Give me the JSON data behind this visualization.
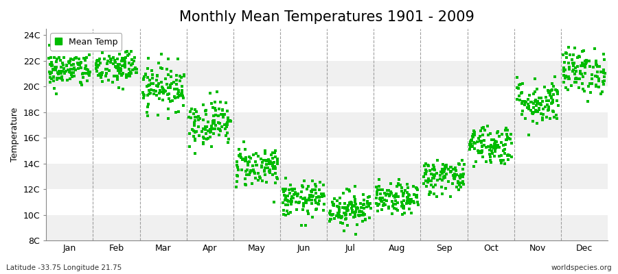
{
  "title": "Monthly Mean Temperatures 1901 - 2009",
  "ylabel": "Temperature",
  "bottom_left_label": "Latitude -33.75 Longitude 21.75",
  "bottom_right_label": "worldspecies.org",
  "legend_label": "Mean Temp",
  "marker_color": "#00BB00",
  "background_color": "#FFFFFF",
  "plot_bg_color": "#FFFFFF",
  "band_colors": [
    "#F0F0F0",
    "#FFFFFF"
  ],
  "ylim": [
    8,
    24.5
  ],
  "yticks": [
    8,
    10,
    12,
    14,
    16,
    18,
    20,
    22,
    24
  ],
  "ytick_labels": [
    "8C",
    "10C",
    "12C",
    "14C",
    "16C",
    "18C",
    "20C",
    "22C",
    "24C"
  ],
  "month_labels": [
    "Jan",
    "Feb",
    "Mar",
    "Apr",
    "May",
    "Jun",
    "Jul",
    "Aug",
    "Sep",
    "Oct",
    "Nov",
    "Dec"
  ],
  "month_means": [
    21.3,
    21.5,
    20.0,
    17.2,
    13.8,
    11.2,
    10.5,
    11.2,
    13.0,
    15.5,
    18.8,
    21.2
  ],
  "month_stds": [
    0.7,
    0.8,
    0.9,
    0.9,
    0.8,
    0.7,
    0.7,
    0.6,
    0.7,
    0.8,
    0.9,
    0.9
  ],
  "n_years": 109,
  "seed": 42,
  "title_fontsize": 15,
  "axis_label_fontsize": 9,
  "tick_fontsize": 9,
  "marker_size": 3.5
}
